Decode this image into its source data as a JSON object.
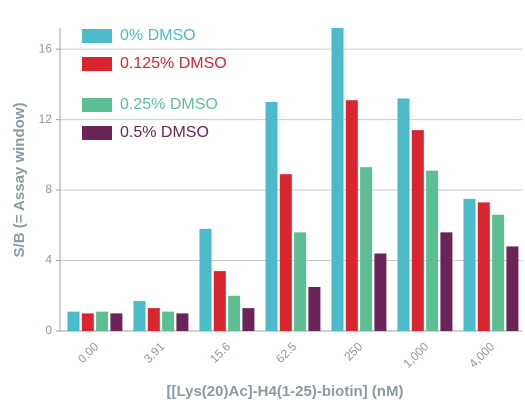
{
  "chart_data": {
    "type": "bar",
    "xlabel": "[[Lys(20)Ac]-H4(1-25)-biotin] (nM)",
    "ylabel": "S/B (= Assay window)",
    "categories": [
      "0.00",
      "3.91",
      "15.6",
      "62.5",
      "250",
      "1,000",
      "4,000"
    ],
    "series": [
      {
        "name": "0% DMSO",
        "color": "#4bbac9",
        "values": [
          1.1,
          1.7,
          5.8,
          13.0,
          17.2,
          13.2,
          7.5
        ]
      },
      {
        "name": "0.125% DMSO",
        "color": "#d9262e",
        "values": [
          1.0,
          1.3,
          3.4,
          8.9,
          13.1,
          11.4,
          7.3
        ]
      },
      {
        "name": "0.25% DMSO",
        "color": "#5dbf91",
        "values": [
          1.1,
          1.1,
          2.0,
          5.6,
          9.3,
          9.1,
          6.6
        ]
      },
      {
        "name": "0.5% DMSO",
        "color": "#6b2458",
        "values": [
          1.0,
          1.0,
          1.3,
          2.5,
          4.4,
          5.6,
          4.8
        ]
      }
    ],
    "ylim": [
      0,
      17.2
    ],
    "yticks": [
      0,
      4,
      8,
      12,
      16
    ],
    "grid": true,
    "legend": "upper left"
  }
}
